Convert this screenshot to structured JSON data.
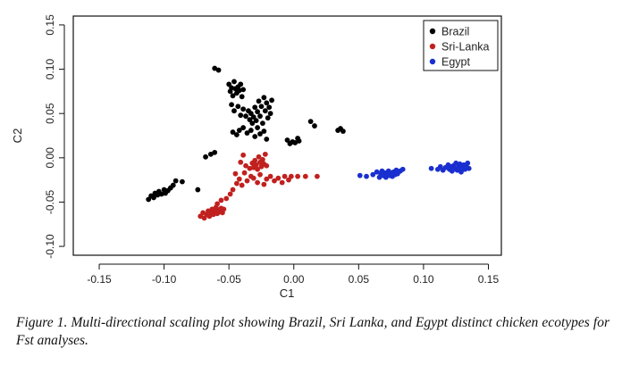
{
  "chart_data": {
    "type": "scatter",
    "title": "",
    "xlabel": "C1",
    "ylabel": "C2",
    "xlim": [
      -0.17,
      0.16
    ],
    "ylim": [
      -0.11,
      0.16
    ],
    "x_ticks": [
      -0.15,
      -0.1,
      -0.05,
      0.0,
      0.05,
      0.1,
      0.15
    ],
    "x_tick_labels": [
      "-0.15",
      "-0.10",
      "-0.05",
      "0.00",
      "0.05",
      "0.10",
      "0.15"
    ],
    "y_ticks": [
      -0.1,
      -0.05,
      0.0,
      0.05,
      0.1,
      0.15
    ],
    "y_tick_labels": [
      "-0.10",
      "-0.05",
      "0.00",
      "0.05",
      "0.10",
      "0.15"
    ],
    "grid": false,
    "legend_position": "top-right",
    "series": [
      {
        "name": "Brazil",
        "color": "#000000",
        "points": [
          [
            -0.112,
            -0.047
          ],
          [
            -0.11,
            -0.043
          ],
          [
            -0.108,
            -0.045
          ],
          [
            -0.107,
            -0.04
          ],
          [
            -0.105,
            -0.042
          ],
          [
            -0.104,
            -0.038
          ],
          [
            -0.102,
            -0.041
          ],
          [
            -0.1,
            -0.036
          ],
          [
            -0.099,
            -0.04
          ],
          [
            -0.097,
            -0.037
          ],
          [
            -0.095,
            -0.034
          ],
          [
            -0.093,
            -0.031
          ],
          [
            -0.091,
            -0.026
          ],
          [
            -0.086,
            -0.027
          ],
          [
            -0.074,
            -0.036
          ],
          [
            -0.068,
            0.001
          ],
          [
            -0.064,
            0.004
          ],
          [
            -0.061,
            0.006
          ],
          [
            -0.061,
            0.101
          ],
          [
            -0.058,
            0.099
          ],
          [
            -0.05,
            0.083
          ],
          [
            -0.049,
            0.075
          ],
          [
            -0.048,
            0.079
          ],
          [
            -0.047,
            0.07
          ],
          [
            -0.046,
            0.086
          ],
          [
            -0.045,
            0.078
          ],
          [
            -0.044,
            0.073
          ],
          [
            -0.043,
            0.08
          ],
          [
            -0.042,
            0.076
          ],
          [
            -0.041,
            0.083
          ],
          [
            -0.04,
            0.069
          ],
          [
            -0.039,
            0.077
          ],
          [
            -0.048,
            0.06
          ],
          [
            -0.046,
            0.053
          ],
          [
            -0.043,
            0.058
          ],
          [
            -0.041,
            0.048
          ],
          [
            -0.039,
            0.055
          ],
          [
            -0.037,
            0.047
          ],
          [
            -0.035,
            0.053
          ],
          [
            -0.034,
            0.043
          ],
          [
            -0.033,
            0.05
          ],
          [
            -0.032,
            0.039
          ],
          [
            -0.031,
            0.046
          ],
          [
            -0.03,
            0.057
          ],
          [
            -0.029,
            0.042
          ],
          [
            -0.028,
            0.052
          ],
          [
            -0.027,
            0.064
          ],
          [
            -0.026,
            0.047
          ],
          [
            -0.025,
            0.058
          ],
          [
            -0.024,
            0.039
          ],
          [
            -0.023,
            0.068
          ],
          [
            -0.022,
            0.053
          ],
          [
            -0.021,
            0.062
          ],
          [
            -0.02,
            0.045
          ],
          [
            -0.019,
            0.057
          ],
          [
            -0.018,
            0.05
          ],
          [
            -0.017,
            0.065
          ],
          [
            -0.047,
            0.029
          ],
          [
            -0.044,
            0.026
          ],
          [
            -0.042,
            0.031
          ],
          [
            -0.039,
            0.034
          ],
          [
            -0.036,
            0.028
          ],
          [
            -0.033,
            0.031
          ],
          [
            -0.03,
            0.024
          ],
          [
            -0.028,
            0.034
          ],
          [
            -0.026,
            0.027
          ],
          [
            -0.023,
            0.03
          ],
          [
            -0.021,
            0.021
          ],
          [
            -0.005,
            0.02
          ],
          [
            -0.003,
            0.016
          ],
          [
            -0.001,
            0.018
          ],
          [
            0.001,
            0.017
          ],
          [
            0.003,
            0.022
          ],
          [
            0.004,
            0.019
          ],
          [
            0.013,
            0.041
          ],
          [
            0.016,
            0.036
          ],
          [
            0.034,
            0.031
          ],
          [
            0.036,
            0.033
          ],
          [
            0.038,
            0.03
          ]
        ]
      },
      {
        "name": "Sri-Lanka",
        "color": "#c0211f",
        "points": [
          [
            -0.072,
            -0.066
          ],
          [
            -0.07,
            -0.062
          ],
          [
            -0.069,
            -0.068
          ],
          [
            -0.067,
            -0.064
          ],
          [
            -0.066,
            -0.06
          ],
          [
            -0.065,
            -0.066
          ],
          [
            -0.064,
            -0.062
          ],
          [
            -0.063,
            -0.058
          ],
          [
            -0.062,
            -0.064
          ],
          [
            -0.061,
            -0.06
          ],
          [
            -0.06,
            -0.056
          ],
          [
            -0.059,
            -0.063
          ],
          [
            -0.058,
            -0.059
          ],
          [
            -0.057,
            -0.061
          ],
          [
            -0.056,
            -0.057
          ],
          [
            -0.055,
            -0.062
          ],
          [
            -0.054,
            -0.058
          ],
          [
            -0.059,
            -0.052
          ],
          [
            -0.056,
            -0.048
          ],
          [
            -0.052,
            -0.046
          ],
          [
            -0.049,
            -0.041
          ],
          [
            -0.047,
            -0.036
          ],
          [
            -0.044,
            -0.029
          ],
          [
            -0.045,
            -0.018
          ],
          [
            -0.042,
            -0.024
          ],
          [
            -0.04,
            -0.031
          ],
          [
            -0.038,
            -0.017
          ],
          [
            -0.036,
            -0.026
          ],
          [
            -0.034,
            -0.012
          ],
          [
            -0.033,
            -0.021
          ],
          [
            -0.041,
            -0.005
          ],
          [
            -0.039,
            0.003
          ],
          [
            -0.037,
            -0.009
          ],
          [
            -0.032,
            -0.006
          ],
          [
            -0.031,
            -0.011
          ],
          [
            -0.03,
            -0.003
          ],
          [
            -0.029,
            -0.008
          ],
          [
            -0.028,
            -0.013
          ],
          [
            -0.027,
            0.001
          ],
          [
            -0.026,
            -0.005
          ],
          [
            -0.025,
            -0.01
          ],
          [
            -0.024,
            -0.002
          ],
          [
            -0.023,
            -0.007
          ],
          [
            -0.022,
            0.004
          ],
          [
            -0.021,
            -0.009
          ],
          [
            -0.031,
            -0.023
          ],
          [
            -0.028,
            -0.028
          ],
          [
            -0.026,
            -0.019
          ],
          [
            -0.023,
            -0.03
          ],
          [
            -0.021,
            -0.024
          ],
          [
            -0.018,
            -0.021
          ],
          [
            -0.015,
            -0.026
          ],
          [
            -0.012,
            -0.023
          ],
          [
            -0.009,
            -0.028
          ],
          [
            -0.007,
            -0.021
          ],
          [
            -0.004,
            -0.025
          ],
          [
            -0.002,
            -0.021
          ],
          [
            0.003,
            -0.021
          ],
          [
            0.009,
            -0.021
          ],
          [
            0.018,
            -0.021
          ]
        ]
      },
      {
        "name": "Egypt",
        "color": "#1a2fcf",
        "points": [
          [
            0.051,
            -0.02
          ],
          [
            0.056,
            -0.021
          ],
          [
            0.061,
            -0.019
          ],
          [
            0.064,
            -0.016
          ],
          [
            0.066,
            -0.022
          ],
          [
            0.067,
            -0.018
          ],
          [
            0.068,
            -0.015
          ],
          [
            0.069,
            -0.02
          ],
          [
            0.07,
            -0.017
          ],
          [
            0.071,
            -0.022
          ],
          [
            0.072,
            -0.018
          ],
          [
            0.073,
            -0.015
          ],
          [
            0.074,
            -0.02
          ],
          [
            0.075,
            -0.017
          ],
          [
            0.076,
            -0.021
          ],
          [
            0.077,
            -0.016
          ],
          [
            0.078,
            -0.019
          ],
          [
            0.079,
            -0.014
          ],
          [
            0.08,
            -0.018
          ],
          [
            0.082,
            -0.015
          ],
          [
            0.084,
            -0.013
          ],
          [
            0.106,
            -0.012
          ],
          [
            0.111,
            -0.013
          ],
          [
            0.113,
            -0.01
          ],
          [
            0.115,
            -0.014
          ],
          [
            0.117,
            -0.011
          ],
          [
            0.119,
            -0.008
          ],
          [
            0.12,
            -0.013
          ],
          [
            0.121,
            -0.01
          ],
          [
            0.122,
            -0.015
          ],
          [
            0.123,
            -0.009
          ],
          [
            0.124,
            -0.012
          ],
          [
            0.125,
            -0.006
          ],
          [
            0.126,
            -0.014
          ],
          [
            0.127,
            -0.01
          ],
          [
            0.128,
            -0.013
          ],
          [
            0.128,
            -0.007
          ],
          [
            0.129,
            -0.016
          ],
          [
            0.13,
            -0.011
          ],
          [
            0.131,
            -0.008
          ],
          [
            0.132,
            -0.013
          ],
          [
            0.133,
            -0.01
          ],
          [
            0.134,
            -0.006
          ],
          [
            0.135,
            -0.012
          ]
        ]
      }
    ]
  },
  "caption": "Figure 1. Multi-directional scaling plot showing Brazil, Sri Lanka, and Egypt distinct chicken ecotypes for Fst analyses."
}
